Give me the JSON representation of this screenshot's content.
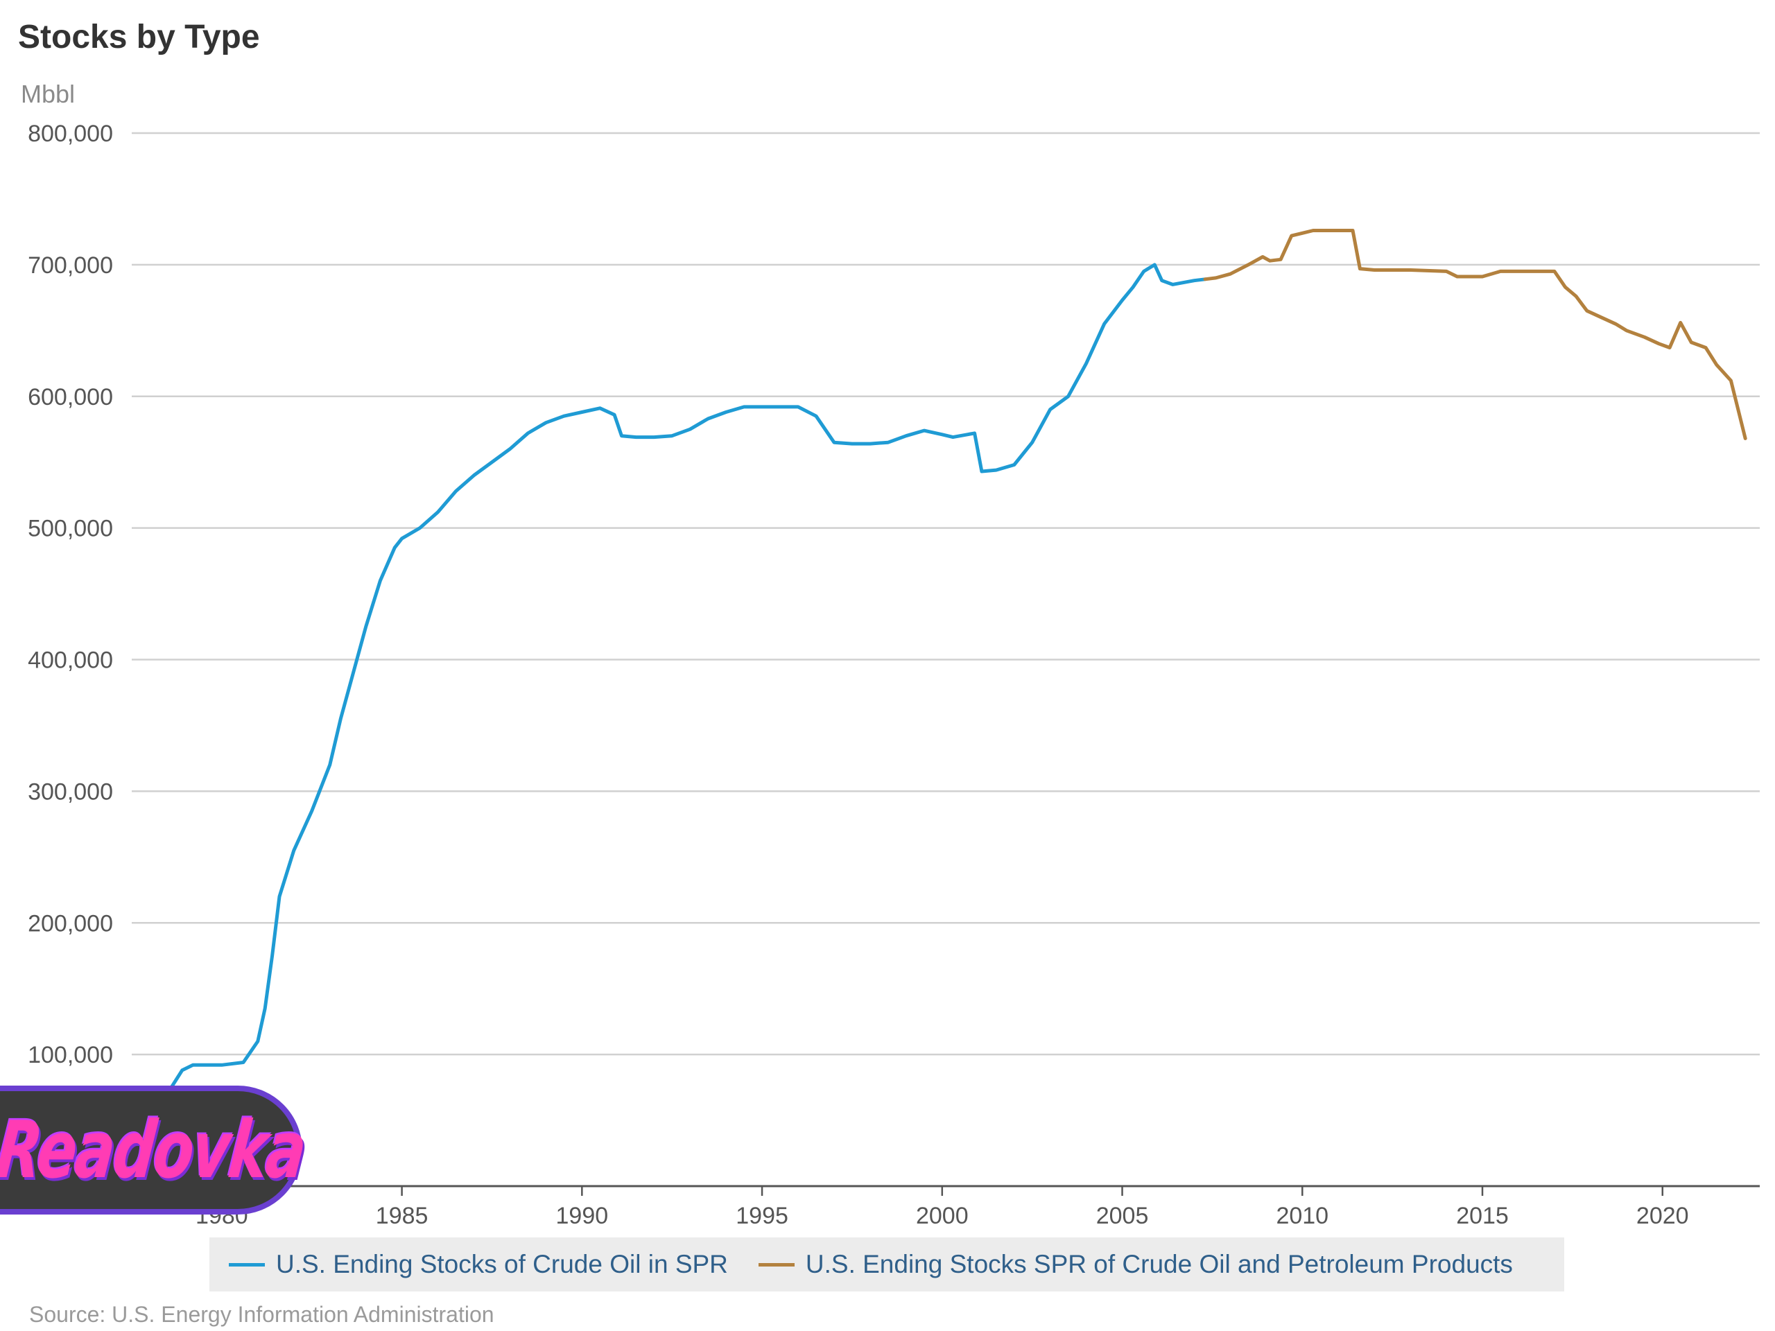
{
  "chart_data": {
    "type": "line",
    "title": "Stocks by Type",
    "ylabel": "Mbbl",
    "xlabel": "",
    "xlim": [
      1977.5,
      2022.7
    ],
    "ylim": [
      0,
      800000
    ],
    "y_ticks": [
      0,
      100000,
      200000,
      300000,
      400000,
      500000,
      600000,
      700000,
      800000
    ],
    "y_tick_labels": [
      "0",
      "100,000",
      "200,000",
      "300,000",
      "400,000",
      "500,000",
      "600,000",
      "700,000",
      "800,000"
    ],
    "x_ticks": [
      1980,
      1985,
      1990,
      1995,
      2000,
      2005,
      2010,
      2015,
      2020
    ],
    "x_tick_labels": [
      "1980",
      "1985",
      "1990",
      "1995",
      "2000",
      "2005",
      "2010",
      "2015",
      "2020"
    ],
    "grid": "horizontal",
    "legend_position": "bottom",
    "series": [
      {
        "name": "U.S. Ending Stocks of Crude Oil in SPR",
        "color": "#1f9bd4",
        "points": [
          [
            1977.6,
            0
          ],
          [
            1977.8,
            8000
          ],
          [
            1978.0,
            25000
          ],
          [
            1978.3,
            55000
          ],
          [
            1978.6,
            75000
          ],
          [
            1978.9,
            88000
          ],
          [
            1979.2,
            92000
          ],
          [
            1980.0,
            92000
          ],
          [
            1980.6,
            94000
          ],
          [
            1981.0,
            110000
          ],
          [
            1981.2,
            135000
          ],
          [
            1981.4,
            175000
          ],
          [
            1981.6,
            220000
          ],
          [
            1982.0,
            255000
          ],
          [
            1982.5,
            285000
          ],
          [
            1983.0,
            320000
          ],
          [
            1983.3,
            355000
          ],
          [
            1983.6,
            385000
          ],
          [
            1984.0,
            425000
          ],
          [
            1984.4,
            460000
          ],
          [
            1984.8,
            485000
          ],
          [
            1985.0,
            492000
          ],
          [
            1985.5,
            500000
          ],
          [
            1986.0,
            512000
          ],
          [
            1986.5,
            528000
          ],
          [
            1987.0,
            540000
          ],
          [
            1987.5,
            550000
          ],
          [
            1988.0,
            560000
          ],
          [
            1988.5,
            572000
          ],
          [
            1989.0,
            580000
          ],
          [
            1989.5,
            585000
          ],
          [
            1990.0,
            588000
          ],
          [
            1990.5,
            591000
          ],
          [
            1990.9,
            586000
          ],
          [
            1991.1,
            570000
          ],
          [
            1991.5,
            569000
          ],
          [
            1992.0,
            569000
          ],
          [
            1992.5,
            570000
          ],
          [
            1993.0,
            575000
          ],
          [
            1993.5,
            583000
          ],
          [
            1994.0,
            588000
          ],
          [
            1994.5,
            592000
          ],
          [
            1995.0,
            592000
          ],
          [
            1995.5,
            592000
          ],
          [
            1996.0,
            592000
          ],
          [
            1996.5,
            585000
          ],
          [
            1997.0,
            565000
          ],
          [
            1997.5,
            564000
          ],
          [
            1998.0,
            564000
          ],
          [
            1998.5,
            565000
          ],
          [
            1999.0,
            570000
          ],
          [
            1999.5,
            574000
          ],
          [
            2000.0,
            571000
          ],
          [
            2000.3,
            569000
          ],
          [
            2000.7,
            571000
          ],
          [
            2000.9,
            572000
          ],
          [
            2001.1,
            543000
          ],
          [
            2001.5,
            544000
          ],
          [
            2002.0,
            548000
          ],
          [
            2002.5,
            565000
          ],
          [
            2003.0,
            590000
          ],
          [
            2003.5,
            600000
          ],
          [
            2004.0,
            625000
          ],
          [
            2004.5,
            655000
          ],
          [
            2005.0,
            673000
          ],
          [
            2005.3,
            683000
          ],
          [
            2005.6,
            695000
          ],
          [
            2005.9,
            700000
          ],
          [
            2006.1,
            688000
          ],
          [
            2006.4,
            685000
          ],
          [
            2007.0,
            688000
          ],
          [
            2007.3,
            689000
          ]
        ]
      },
      {
        "name": "U.S. Ending Stocks SPR of Crude Oil and Petroleum Products",
        "color": "#b3813e",
        "points": [
          [
            2007.3,
            689000
          ],
          [
            2007.6,
            690000
          ],
          [
            2008.0,
            693000
          ],
          [
            2008.5,
            700000
          ],
          [
            2008.9,
            706000
          ],
          [
            2009.1,
            703000
          ],
          [
            2009.4,
            704000
          ],
          [
            2009.7,
            722000
          ],
          [
            2010.0,
            724000
          ],
          [
            2010.3,
            726000
          ],
          [
            2011.0,
            726000
          ],
          [
            2011.4,
            726000
          ],
          [
            2011.6,
            697000
          ],
          [
            2012.0,
            696000
          ],
          [
            2013.0,
            696000
          ],
          [
            2014.0,
            695000
          ],
          [
            2014.3,
            691000
          ],
          [
            2015.0,
            691000
          ],
          [
            2015.5,
            695000
          ],
          [
            2016.0,
            695000
          ],
          [
            2016.5,
            695000
          ],
          [
            2017.0,
            695000
          ],
          [
            2017.3,
            683000
          ],
          [
            2017.6,
            676000
          ],
          [
            2017.9,
            665000
          ],
          [
            2018.3,
            660000
          ],
          [
            2018.7,
            655000
          ],
          [
            2019.0,
            650000
          ],
          [
            2019.5,
            645000
          ],
          [
            2019.9,
            640000
          ],
          [
            2020.2,
            637000
          ],
          [
            2020.5,
            656000
          ],
          [
            2020.8,
            641000
          ],
          [
            2021.2,
            637000
          ],
          [
            2021.5,
            624000
          ],
          [
            2021.9,
            612000
          ],
          [
            2022.1,
            590000
          ],
          [
            2022.3,
            568000
          ]
        ]
      }
    ],
    "source": "Source: U.S. Energy Information Administration"
  },
  "legend": {
    "item1": "U.S. Ending Stocks of Crude Oil in SPR",
    "item2": "U.S. Ending Stocks SPR of Crude Oil and Petroleum Products"
  },
  "watermark": {
    "text": "Readovka"
  }
}
